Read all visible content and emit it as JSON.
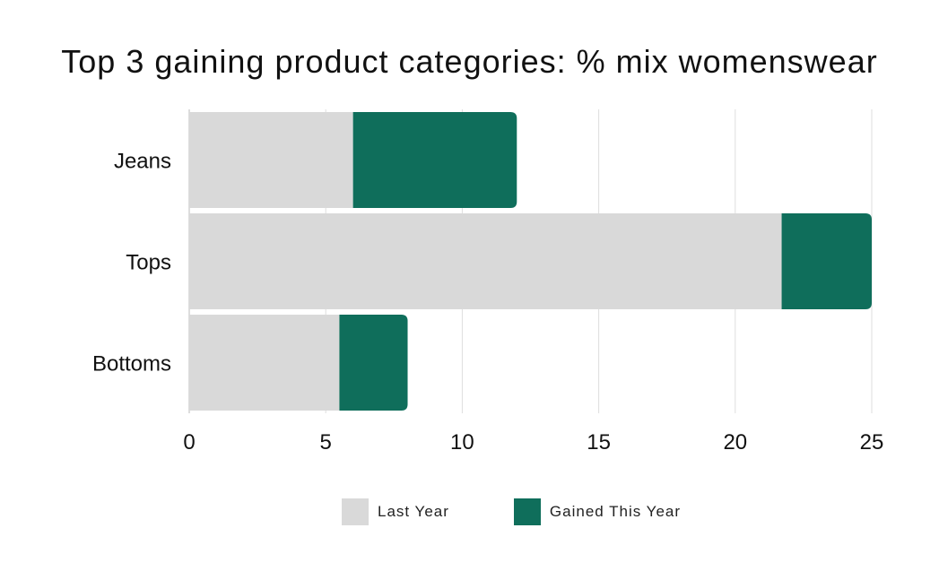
{
  "chart_data": {
    "type": "bar",
    "orientation": "horizontal",
    "stacked": true,
    "title": "Top 3 gaining product categories: % mix womenswear",
    "categories": [
      "Jeans",
      "Tops",
      "Bottoms"
    ],
    "series": [
      {
        "name": "Last Year",
        "values": [
          6.0,
          21.7,
          5.5
        ],
        "color": "#d9d9d9"
      },
      {
        "name": "Gained This Year",
        "values": [
          6.0,
          3.3,
          2.5
        ],
        "color": "#0f6e5b"
      }
    ],
    "xlim": [
      0,
      25
    ],
    "xticks": [
      "0",
      "5",
      "10",
      "15",
      "20",
      "25"
    ],
    "grid": true,
    "legend_position": "bottom"
  }
}
